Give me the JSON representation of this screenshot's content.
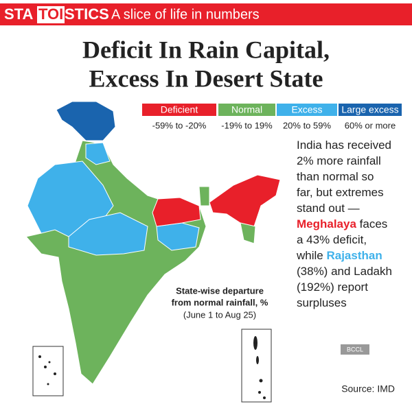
{
  "header": {
    "brand_parts": [
      "STA",
      "TOI",
      "STICS"
    ],
    "tagline": "A slice of life in numbers"
  },
  "title": [
    "Deficit In Rain Capital,",
    "Excess In Desert State"
  ],
  "legend": [
    {
      "label": "Deficient",
      "range": "-59% to -20%",
      "color": "#e8202a"
    },
    {
      "label": "Normal",
      "range": "-19% to 19%",
      "color": "#6db35c"
    },
    {
      "label": "Excess",
      "range": "20% to 59%",
      "color": "#3fb1ea"
    },
    {
      "label": "Large excess",
      "range": "60% or more",
      "color": "#1a64ae"
    }
  ],
  "description": [
    [
      {
        "text": "India has received"
      }
    ],
    [
      {
        "text": "2% more rainfall"
      }
    ],
    [
      {
        "text": "than normal so"
      }
    ],
    [
      {
        "text": "far, but extremes"
      }
    ],
    [
      {
        "text": "stand out —"
      }
    ],
    [
      {
        "text": "Meghalaya",
        "color": "#e8202a"
      },
      {
        "text": " faces"
      }
    ],
    [
      {
        "text": "a 43% deficit,"
      }
    ],
    [
      {
        "text": "while "
      },
      {
        "text": "Rajasthan",
        "color": "#3fb1ea"
      }
    ],
    [
      {
        "text": "(38%) and Ladakh"
      }
    ],
    [
      {
        "text": "(192%) report"
      }
    ],
    [
      {
        "text": "surpluses"
      }
    ]
  ],
  "caption": [
    "State-wise departure",
    "from normal rainfall, %",
    "(June 1 to Aug 25)"
  ],
  "credit": "BCCL",
  "source": "Source: IMD"
}
